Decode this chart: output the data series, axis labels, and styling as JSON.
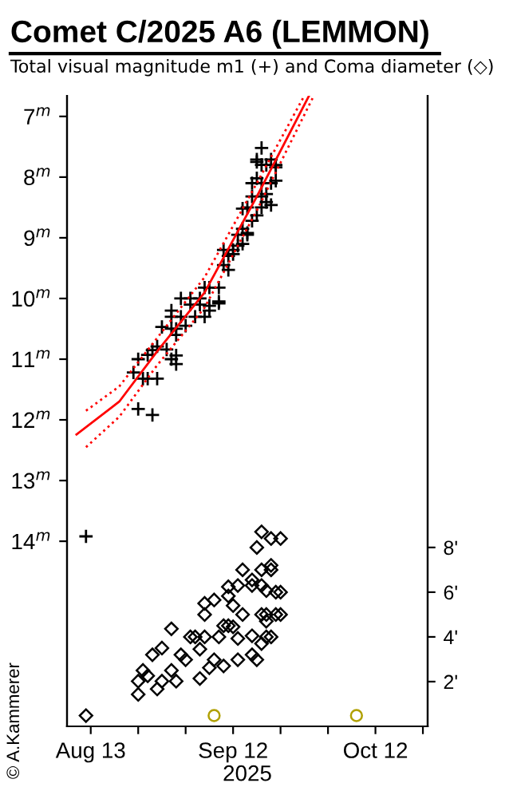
{
  "chart_data": {
    "type": "scatter",
    "title": "Comet C/2025 A6 (LEMMON)",
    "subtitle": "Total visual magnitude m1 (+) and Coma diameter (◇)",
    "xlabel": "2025",
    "annotations": [
      "© A.Kammerer"
    ],
    "xlim": [
      "2025-08-08",
      "2025-10-23"
    ],
    "xticks": [
      {
        "value": "2025-08-13",
        "label": "Aug 13"
      },
      {
        "value": "2025-08-23",
        "label": null
      },
      {
        "value": "2025-09-02",
        "label": null
      },
      {
        "value": "2025-09-12",
        "label": "Sep 12"
      },
      {
        "value": "2025-09-22",
        "label": null
      },
      {
        "value": "2025-10-02",
        "label": null
      },
      {
        "value": "2025-10-12",
        "label": "Oct 12"
      },
      {
        "value": "2025-10-22",
        "label": null
      }
    ],
    "ylim": [
      17.05,
      6.66
    ],
    "yticks": [
      {
        "value": 7,
        "label": "7$^{m}$"
      },
      {
        "value": 8,
        "label": "8$^{m}$"
      },
      {
        "value": 9,
        "label": "9$^{m}$"
      },
      {
        "value": 10,
        "label": "10$^{m}$"
      },
      {
        "value": 11,
        "label": "11$^{m}$"
      },
      {
        "value": 12,
        "label": "12$^{m}$"
      },
      {
        "value": 13,
        "label": "13$^{m}$"
      },
      {
        "value": 14,
        "label": "14$^{m}$"
      }
    ],
    "y2lim": [
      0,
      28.2
    ],
    "y2ticks": [
      {
        "value": 2,
        "label": "2'"
      },
      {
        "value": 4,
        "label": "4'"
      },
      {
        "value": 6,
        "label": "6'"
      },
      {
        "value": 8,
        "label": "8'"
      }
    ],
    "grid": false,
    "legend": false,
    "series": [
      {
        "axis": "y",
        "marker": "cross",
        "color": "#000000",
        "x": [
          "2025-08-12",
          "2025-08-22",
          "2025-08-23",
          "2025-08-23",
          "2025-08-24",
          "2025-08-25",
          "2025-08-25",
          "2025-08-26",
          "2025-08-26",
          "2025-08-27",
          "2025-08-27",
          "2025-08-28",
          "2025-08-29",
          "2025-08-30",
          "2025-08-30",
          "2025-08-30",
          "2025-08-30",
          "2025-08-31",
          "2025-08-31",
          "2025-08-31",
          "2025-08-31",
          "2025-09-01",
          "2025-09-01",
          "2025-09-02",
          "2025-09-03",
          "2025-09-03",
          "2025-09-04",
          "2025-09-05",
          "2025-09-05",
          "2025-09-06",
          "2025-09-06",
          "2025-09-07",
          "2025-09-07",
          "2025-09-07",
          "2025-09-09",
          "2025-09-09",
          "2025-09-09",
          "2025-09-10",
          "2025-09-10",
          "2025-09-11",
          "2025-09-11",
          "2025-09-12",
          "2025-09-12",
          "2025-09-13",
          "2025-09-13",
          "2025-09-14",
          "2025-09-14",
          "2025-09-14",
          "2025-09-15",
          "2025-09-15",
          "2025-09-15",
          "2025-09-16",
          "2025-09-16",
          "2025-09-16",
          "2025-09-17",
          "2025-09-17",
          "2025-09-17",
          "2025-09-17",
          "2025-09-18",
          "2025-09-18",
          "2025-09-18",
          "2025-09-18",
          "2025-09-18",
          "2025-09-19",
          "2025-09-19",
          "2025-09-19",
          "2025-09-20",
          "2025-09-20",
          "2025-09-20",
          "2025-09-21",
          "2025-09-21",
          "2025-09-21"
        ],
        "values": [
          13.92,
          11.22,
          11.0,
          11.82,
          11.32,
          10.93,
          11.32,
          10.85,
          11.92,
          11.32,
          10.79,
          10.47,
          10.84,
          11.0,
          10.2,
          10.5,
          10.3,
          11.08,
          10.94,
          10.5,
          10.6,
          10.0,
          10.3,
          10.45,
          10.0,
          10.1,
          10.3,
          10.0,
          10.1,
          9.82,
          10.3,
          10.2,
          9.82,
          10.12,
          9.82,
          10.08,
          10.05,
          9.45,
          9.2,
          9.53,
          9.3,
          9.2,
          9.27,
          9.13,
          8.95,
          9.1,
          8.85,
          8.52,
          8.95,
          8.92,
          8.5,
          8.72,
          8.32,
          8.1,
          8.63,
          8.02,
          7.71,
          7.75,
          8.32,
          8.1,
          8.5,
          7.52,
          7.8,
          8.28,
          8.41,
          7.8,
          8.46,
          8.1,
          7.71,
          8.06,
          7.8,
          7.84
        ]
      },
      {
        "type": "line",
        "axis": "y",
        "marker": "none",
        "line_style": "solid",
        "color": "#ff0000",
        "x": [
          "2025-08-10",
          "2025-08-19",
          "2025-08-27",
          "2025-09-06",
          "2025-09-17",
          "2025-09-28"
        ],
        "values": [
          12.24,
          11.7,
          10.87,
          9.9,
          8.32,
          6.66
        ]
      },
      {
        "type": "line",
        "axis": "y",
        "marker": "none",
        "line_style": "dotted",
        "color": "#ff0000",
        "x": [
          "2025-08-12",
          "2025-08-19",
          "2025-08-27",
          "2025-09-06",
          "2025-09-17",
          "2025-09-27"
        ],
        "values": [
          11.85,
          11.45,
          10.65,
          9.65,
          8.1,
          6.66
        ]
      },
      {
        "type": "line",
        "axis": "y",
        "marker": "none",
        "line_style": "dotted",
        "color": "#ff0000",
        "x": [
          "2025-08-12",
          "2025-08-19",
          "2025-08-27",
          "2025-09-06",
          "2025-09-17",
          "2025-09-29"
        ],
        "values": [
          12.45,
          11.95,
          11.1,
          10.15,
          8.55,
          6.66
        ]
      },
      {
        "axis": "y2",
        "marker": "diamond",
        "color": "#000000",
        "x": [
          "2025-08-12",
          "2025-08-23",
          "2025-08-23",
          "2025-08-24",
          "2025-08-25",
          "2025-08-26",
          "2025-08-27",
          "2025-08-28",
          "2025-08-28",
          "2025-08-30",
          "2025-08-30",
          "2025-08-31",
          "2025-09-01",
          "2025-09-02",
          "2025-09-03",
          "2025-09-04",
          "2025-09-05",
          "2025-09-05",
          "2025-09-06",
          "2025-09-06",
          "2025-09-06",
          "2025-09-07",
          "2025-09-08",
          "2025-09-08",
          "2025-09-09",
          "2025-09-10",
          "2025-09-10",
          "2025-09-11",
          "2025-09-11",
          "2025-09-11",
          "2025-09-12",
          "2025-09-12",
          "2025-09-13",
          "2025-09-13",
          "2025-09-13",
          "2025-09-14",
          "2025-09-14",
          "2025-09-16",
          "2025-09-16",
          "2025-09-16",
          "2025-09-16",
          "2025-09-17",
          "2025-09-17",
          "2025-09-18",
          "2025-09-18",
          "2025-09-18",
          "2025-09-18",
          "2025-09-18",
          "2025-09-19",
          "2025-09-19",
          "2025-09-19",
          "2025-09-19",
          "2025-09-20",
          "2025-09-20",
          "2025-09-20",
          "2025-09-20",
          "2025-09-21",
          "2025-09-21",
          "2025-09-22",
          "2025-09-22",
          "2025-09-22"
        ],
        "values": [
          0.48,
          2.02,
          1.43,
          2.5,
          2.26,
          3.2,
          1.67,
          3.5,
          2.02,
          4.36,
          2.5,
          2.02,
          3.2,
          2.98,
          4.0,
          4.0,
          2.14,
          3.45,
          5.5,
          4.0,
          5.0,
          2.62,
          5.65,
          2.98,
          4.0,
          4.5,
          2.7,
          4.5,
          6.24,
          5.83,
          4.45,
          5.4,
          6.3,
          3.93,
          2.98,
          7.0,
          5.0,
          6.55,
          3.2,
          6.3,
          4.05,
          2.98,
          8.0,
          7.0,
          5.0,
          3.7,
          6.3,
          8.7,
          4.7,
          4.0,
          6.07,
          5.0,
          7.2,
          7.0,
          4.0,
          8.4,
          6.0,
          5.0,
          6.0,
          5.0,
          8.4
        ]
      },
      {
        "axis": "y2",
        "marker": "circle",
        "color": "#b0a000",
        "x": [
          "2025-09-08",
          "2025-10-08"
        ],
        "values": [
          0.48,
          0.48
        ]
      }
    ]
  }
}
